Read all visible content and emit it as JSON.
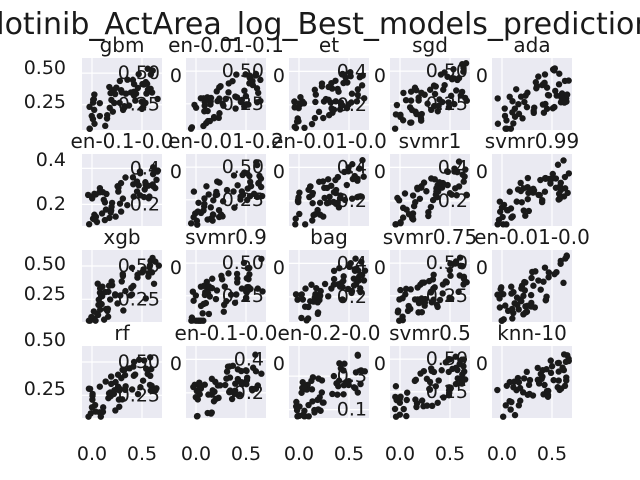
{
  "figure": {
    "title": "Erlotinib_ActArea_log_Best_models_predictions"
  },
  "chart_data": {
    "type": "scatter",
    "title": "Erlotinib_ActArea_log_Best_models_predictions",
    "layout": {
      "rows": 4,
      "cols": 5
    },
    "shared_x_ticks": [
      "0.0",
      "0.5"
    ],
    "xlim": [
      -0.1,
      0.7
    ],
    "panels": [
      {
        "title": "gbm",
        "ylim": [
          0.05,
          0.62
        ],
        "yticks": [
          0.25,
          0.5
        ],
        "ytick_labels": [
          "0.25",
          "0.50"
        ],
        "seed": 11
      },
      {
        "title": "en-0.01-0.1",
        "ylim": [
          0.05,
          0.6
        ],
        "yticks": [
          0.25,
          0.5
        ],
        "ytick_labels": [
          "0.25",
          "0.50"
        ],
        "seed": 12
      },
      {
        "title": "et",
        "ylim": [
          0.05,
          0.48
        ],
        "yticks": [
          0.2,
          0.4
        ],
        "ytick_labels": [
          "0.2",
          "0.4"
        ],
        "seed": 13
      },
      {
        "title": "sgd",
        "ylim": [
          0.05,
          0.6
        ],
        "yticks": [
          0.25,
          0.5
        ],
        "ytick_labels": [
          "0.25",
          "0.50"
        ],
        "seed": 14
      },
      {
        "title": "ada",
        "ylim": [
          0.05,
          0.6
        ],
        "yticks": [],
        "ytick_labels": [],
        "seed": 15
      },
      {
        "title": "en-0.1-0.0",
        "ylim": [
          0.08,
          0.48
        ],
        "yticks": [
          0.2,
          0.4
        ],
        "ytick_labels": [
          "0.2",
          "0.4"
        ],
        "seed": 16
      },
      {
        "title": "en-0.01-0.2",
        "ylim": [
          0.05,
          0.6
        ],
        "yticks": [
          0.25,
          0.5
        ],
        "ytick_labels": [
          "0.25",
          "0.50"
        ],
        "seed": 17
      },
      {
        "title": "en-0.01-0.0",
        "ylim": [
          0.05,
          0.48
        ],
        "yticks": [
          0.2,
          0.4
        ],
        "ytick_labels": [
          "0.2",
          "0.4"
        ],
        "seed": 18
      },
      {
        "title": "svmr1",
        "ylim": [
          0.05,
          0.48
        ],
        "yticks": [
          0.2,
          0.4
        ],
        "ytick_labels": [
          "0.2",
          "0.4"
        ],
        "seed": 19
      },
      {
        "title": "svmr0.99",
        "ylim": [
          0.05,
          0.48
        ],
        "yticks": [],
        "ytick_labels": [],
        "seed": 20
      },
      {
        "title": "xgb",
        "ylim": [
          0.08,
          0.62
        ],
        "yticks": [
          0.25,
          0.5
        ],
        "ytick_labels": [
          "0.25",
          "0.50"
        ],
        "seed": 21
      },
      {
        "title": "svmr0.9",
        "ylim": [
          0.05,
          0.6
        ],
        "yticks": [
          0.25,
          0.5
        ],
        "ytick_labels": [
          "0.25",
          "0.50"
        ],
        "seed": 22
      },
      {
        "title": "bag",
        "ylim": [
          0.05,
          0.48
        ],
        "yticks": [
          0.2,
          0.4
        ],
        "ytick_labels": [
          "0.2",
          "0.4"
        ],
        "seed": 23
      },
      {
        "title": "svmr0.75",
        "ylim": [
          0.05,
          0.6
        ],
        "yticks": [
          0.25,
          0.5
        ],
        "ytick_labels": [
          "0.25",
          "0.50"
        ],
        "seed": 24
      },
      {
        "title": "en-0.01-0.0",
        "ylim": [
          0.05,
          0.6
        ],
        "yticks": [],
        "ytick_labels": [],
        "seed": 25
      },
      {
        "title": "rf",
        "ylim": [
          0.08,
          0.62
        ],
        "yticks": [
          0.25,
          0.5
        ],
        "ytick_labels": [
          "0.25",
          "0.50"
        ],
        "seed": 26
      },
      {
        "title": "en-0.1-0.0",
        "ylim": [
          0.05,
          0.48
        ],
        "yticks": [
          0.2,
          0.4
        ],
        "ytick_labels": [
          "0.2",
          "0.4"
        ],
        "seed": 27
      },
      {
        "title": "en-0.2-0.0",
        "ylim": [
          0.05,
          0.48
        ],
        "yticks": [
          0.1,
          0.3
        ],
        "ytick_labels": [
          "0.1",
          "0.3"
        ],
        "seed": 28
      },
      {
        "title": "svmr0.5",
        "ylim": [
          0.05,
          0.6
        ],
        "yticks": [
          0.25,
          0.5
        ],
        "ytick_labels": [
          "0.25",
          "0.50"
        ],
        "seed": 29
      },
      {
        "title": "knn-10",
        "ylim": [
          0.05,
          0.6
        ],
        "yticks": [],
        "ytick_labels": [],
        "seed": 30
      }
    ],
    "row_left_ticks": [
      {
        "values": [
          "0.50",
          "0.25"
        ]
      },
      {
        "values": [
          "0.4",
          "0.2"
        ]
      },
      {
        "values": [
          "0.50",
          "0.25"
        ]
      },
      {
        "values": [
          "0.50",
          "0.25"
        ]
      }
    ],
    "inner_left_label": "0",
    "grid": true
  }
}
